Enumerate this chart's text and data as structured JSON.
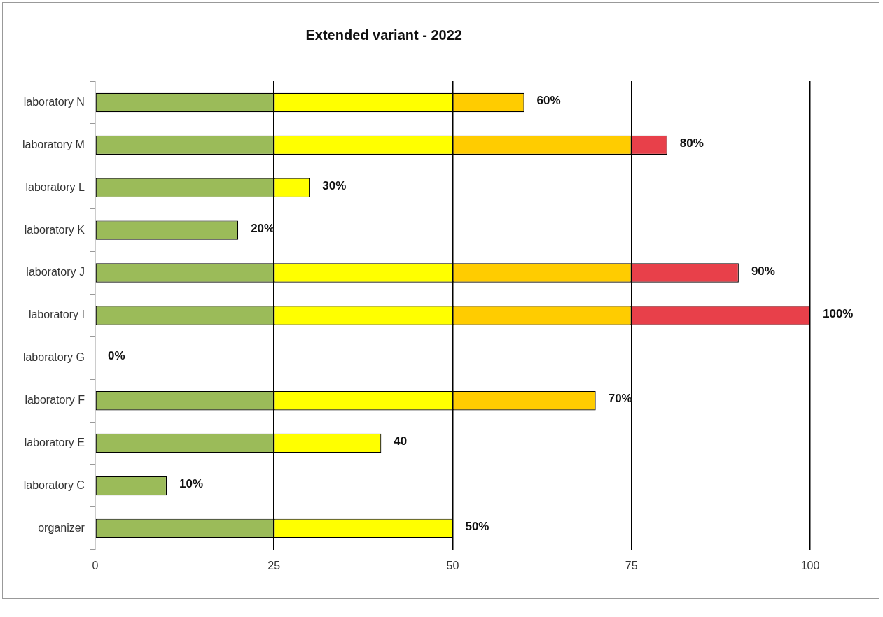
{
  "chart_data": {
    "type": "bar",
    "orientation": "horizontal",
    "stacked": true,
    "title": "Extended variant - 2022",
    "categories": [
      "laboratory N",
      "laboratory M",
      "laboratory L",
      "laboratory K",
      "laboratory J",
      "laboratory I",
      "laboratory G",
      "laboratory F",
      "laboratory E",
      "laboratory C",
      "organizer"
    ],
    "series": [
      {
        "color": "#9bbb59",
        "values": [
          25,
          25,
          25,
          20,
          25,
          25,
          null,
          25,
          25,
          10,
          25
        ]
      },
      {
        "color": "#ffff00",
        "values": [
          25,
          25,
          5,
          null,
          25,
          25,
          null,
          25,
          15,
          null,
          25
        ]
      },
      {
        "color": "#ffcc00",
        "values": [
          10,
          25,
          null,
          null,
          25,
          25,
          null,
          20,
          null,
          null,
          null
        ]
      },
      {
        "color": "#e8404a",
        "values": [
          null,
          5,
          null,
          null,
          15,
          25,
          null,
          null,
          null,
          null,
          null
        ]
      }
    ],
    "totals": [
      "60%",
      "80%",
      "30%",
      "20%",
      "90%",
      "100%",
      "0%",
      "70%",
      "40",
      "10%",
      "50%"
    ],
    "xlim": [
      0,
      100
    ],
    "xticks": [
      0,
      25,
      50,
      75,
      100
    ],
    "grid": "x",
    "legend": false
  }
}
